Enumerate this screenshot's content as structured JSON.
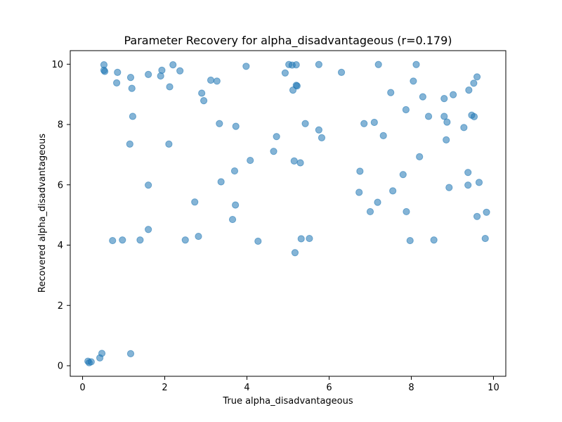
{
  "chart_data": {
    "type": "scatter",
    "title": "Parameter Recovery for alpha_disadvantageous (r=0.179)",
    "xlabel": "True alpha_disadvantageous",
    "ylabel": "Recovered alpha_disadvantageous",
    "xlim": [
      -0.3,
      10.3
    ],
    "ylim": [
      -0.35,
      10.45
    ],
    "xticks": [
      0,
      2,
      4,
      6,
      8,
      10
    ],
    "yticks": [
      0,
      2,
      4,
      6,
      8,
      10
    ],
    "grid": false,
    "point_color": "#1f77b4",
    "point_opacity": 0.55,
    "series": [
      {
        "points": [
          [
            0.13,
            0.15
          ],
          [
            0.16,
            0.1
          ],
          [
            0.21,
            0.13
          ],
          [
            0.42,
            0.26
          ],
          [
            0.47,
            0.41
          ],
          [
            1.17,
            0.4
          ],
          [
            0.52,
            9.98
          ],
          [
            0.52,
            9.8
          ],
          [
            0.54,
            9.76
          ],
          [
            0.85,
            9.73
          ],
          [
            0.83,
            9.38
          ],
          [
            1.17,
            9.56
          ],
          [
            1.2,
            9.2
          ],
          [
            1.22,
            8.27
          ],
          [
            1.15,
            7.35
          ],
          [
            0.73,
            4.15
          ],
          [
            0.97,
            4.17
          ],
          [
            1.4,
            4.17
          ],
          [
            1.6,
            4.52
          ],
          [
            1.6,
            5.99
          ],
          [
            1.6,
            9.66
          ],
          [
            1.9,
            9.61
          ],
          [
            1.93,
            9.8
          ],
          [
            2.1,
            7.35
          ],
          [
            2.12,
            9.25
          ],
          [
            2.2,
            9.98
          ],
          [
            2.37,
            9.78
          ],
          [
            2.5,
            4.17
          ],
          [
            2.73,
            5.43
          ],
          [
            2.82,
            4.29
          ],
          [
            2.9,
            9.04
          ],
          [
            2.95,
            8.79
          ],
          [
            3.12,
            9.47
          ],
          [
            3.27,
            9.44
          ],
          [
            3.33,
            8.03
          ],
          [
            3.37,
            6.1
          ],
          [
            3.65,
            4.85
          ],
          [
            3.7,
            6.46
          ],
          [
            3.72,
            5.33
          ],
          [
            3.73,
            7.94
          ],
          [
            3.98,
            9.93
          ],
          [
            4.08,
            6.81
          ],
          [
            4.27,
            4.13
          ],
          [
            4.65,
            7.11
          ],
          [
            4.72,
            7.6
          ],
          [
            4.93,
            9.71
          ],
          [
            5.02,
            9.99
          ],
          [
            5.1,
            9.97
          ],
          [
            5.12,
            9.14
          ],
          [
            5.15,
            6.79
          ],
          [
            5.2,
            9.3
          ],
          [
            5.22,
            9.28
          ],
          [
            5.2,
            9.98
          ],
          [
            5.17,
            3.75
          ],
          [
            5.3,
            6.73
          ],
          [
            5.32,
            4.21
          ],
          [
            5.42,
            8.03
          ],
          [
            5.52,
            4.22
          ],
          [
            5.75,
            7.82
          ],
          [
            5.75,
            9.99
          ],
          [
            5.82,
            7.56
          ],
          [
            6.3,
            9.73
          ],
          [
            6.73,
            5.75
          ],
          [
            6.75,
            6.45
          ],
          [
            6.85,
            8.03
          ],
          [
            7.0,
            5.11
          ],
          [
            7.1,
            8.07
          ],
          [
            7.18,
            5.42
          ],
          [
            7.2,
            9.99
          ],
          [
            7.32,
            7.63
          ],
          [
            7.5,
            9.06
          ],
          [
            7.55,
            5.8
          ],
          [
            7.8,
            6.34
          ],
          [
            7.87,
            8.49
          ],
          [
            7.88,
            5.11
          ],
          [
            7.97,
            4.15
          ],
          [
            8.05,
            9.44
          ],
          [
            8.12,
            9.99
          ],
          [
            8.2,
            6.93
          ],
          [
            8.28,
            8.92
          ],
          [
            8.42,
            8.27
          ],
          [
            8.55,
            4.17
          ],
          [
            8.8,
            8.86
          ],
          [
            8.8,
            8.27
          ],
          [
            8.85,
            7.49
          ],
          [
            8.87,
            8.08
          ],
          [
            8.92,
            5.91
          ],
          [
            9.02,
            8.99
          ],
          [
            9.28,
            7.9
          ],
          [
            9.38,
            5.99
          ],
          [
            9.38,
            6.41
          ],
          [
            9.4,
            9.14
          ],
          [
            9.47,
            8.31
          ],
          [
            9.53,
            8.26
          ],
          [
            9.52,
            9.37
          ],
          [
            9.6,
            9.58
          ],
          [
            9.6,
            4.95
          ],
          [
            9.65,
            6.08
          ],
          [
            9.8,
            4.22
          ],
          [
            9.83,
            5.09
          ]
        ]
      }
    ]
  }
}
